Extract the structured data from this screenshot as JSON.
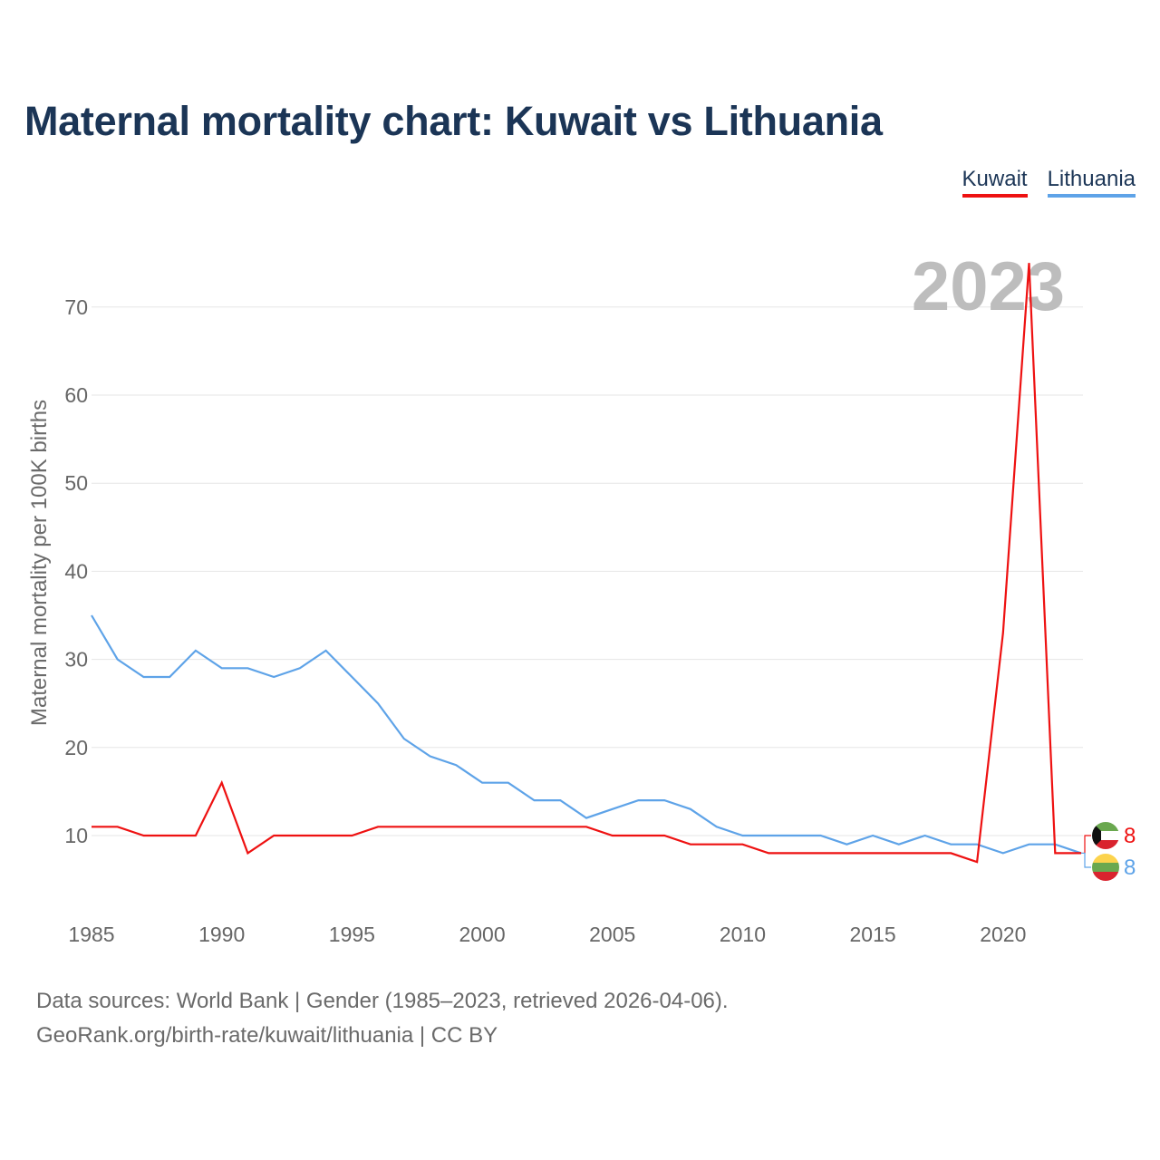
{
  "header": {
    "title": "Maternal mortality chart: Kuwait vs Lithuania"
  },
  "legend": {
    "items": [
      {
        "label": "Kuwait",
        "color": "#ee1111"
      },
      {
        "label": "Lithuania",
        "color": "#5ea3e8"
      }
    ]
  },
  "footer": {
    "line1": "Data sources: World Bank | Gender (1985–2023, retrieved 2026-04-06).",
    "line2": "GeoRank.org/birth-rate/kuwait/lithuania | CC BY"
  },
  "chart_data": {
    "type": "line",
    "title": "Maternal mortality chart: Kuwait vs Lithuania",
    "ylabel": "Maternal mortality per 100K births",
    "xlabel": "",
    "year_label": "2023",
    "x": [
      1985,
      1986,
      1987,
      1988,
      1989,
      1990,
      1991,
      1992,
      1993,
      1994,
      1995,
      1996,
      1997,
      1998,
      1999,
      2000,
      2001,
      2002,
      2003,
      2004,
      2005,
      2006,
      2007,
      2008,
      2009,
      2010,
      2011,
      2012,
      2013,
      2014,
      2015,
      2016,
      2017,
      2018,
      2019,
      2020,
      2021,
      2022,
      2023
    ],
    "xlim": [
      1985,
      2023
    ],
    "ylim": [
      3,
      78
    ],
    "x_ticks": [
      "1985",
      "1990",
      "1995",
      "2000",
      "2005",
      "2010",
      "2015",
      "2020"
    ],
    "y_ticks": [
      "10",
      "20",
      "30",
      "40",
      "50",
      "60",
      "70"
    ],
    "grid": true,
    "legend_position": "top-right",
    "series": [
      {
        "name": "Kuwait",
        "color": "#ee1111",
        "end_label": "8",
        "values": [
          11,
          11,
          10,
          10,
          10,
          16,
          8,
          10,
          10,
          10,
          10,
          11,
          11,
          11,
          11,
          11,
          11,
          11,
          11,
          11,
          10,
          10,
          10,
          9,
          9,
          9,
          8,
          8,
          8,
          8,
          8,
          8,
          8,
          8,
          7,
          33,
          75,
          8,
          8
        ]
      },
      {
        "name": "Lithuania",
        "color": "#5ea3e8",
        "end_label": "8",
        "values": [
          35,
          30,
          28,
          28,
          31,
          29,
          29,
          28,
          29,
          31,
          28,
          25,
          21,
          19,
          18,
          16,
          16,
          14,
          14,
          12,
          13,
          14,
          14,
          13,
          11,
          10,
          10,
          10,
          10,
          9,
          10,
          9,
          10,
          9,
          9,
          8,
          9,
          9,
          8
        ]
      }
    ]
  }
}
